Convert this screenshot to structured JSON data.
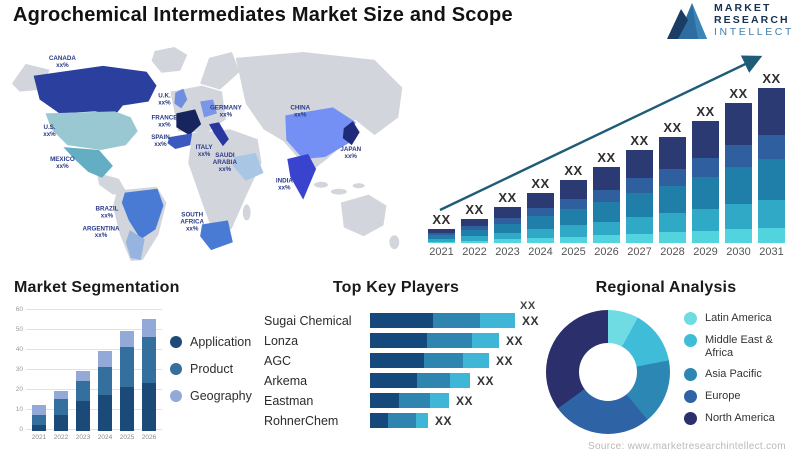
{
  "header": {
    "title": "Agrochemical Intermediates Market Size and Scope",
    "logo": {
      "line1": "MARKET",
      "line2": "RESEARCH",
      "line3": "INTELLECT",
      "icon": "mountain-m-logo",
      "color_dark": "#16314f",
      "color_light": "#2e6da0"
    }
  },
  "sections": {
    "segmentation_title": "Market Segmentation",
    "players_title": "Top Key Players",
    "regional_title": "Regional Analysis"
  },
  "source_note": "Source: www.marketresearchintellect.com",
  "chart_data": [
    {
      "id": "market_size",
      "type": "bar",
      "title": "Market size forecast by year (stacked)",
      "categories": [
        "2021",
        "2022",
        "2023",
        "2024",
        "2025",
        "2026",
        "2027",
        "2028",
        "2029",
        "2030",
        "2031"
      ],
      "bar_label": "XX",
      "totals_relative": [
        14,
        24,
        36,
        50,
        63,
        76,
        93,
        106,
        122,
        140,
        155
      ],
      "stack_fractions": [
        0.1,
        0.18,
        0.26,
        0.16,
        0.3
      ],
      "stack_colors": [
        "#52d4de",
        "#2fa9c6",
        "#1f7fa8",
        "#2f5f9e",
        "#2b3a72"
      ],
      "trend_arrow": true,
      "arrow_color": "#1e5c78",
      "legend_position": "none",
      "grid": false
    },
    {
      "id": "segmentation",
      "type": "bar",
      "stacked": true,
      "title": "Market Segmentation",
      "categories": [
        "2021",
        "2022",
        "2023",
        "2024",
        "2025",
        "2026"
      ],
      "series": [
        {
          "name": "Application",
          "color": "#1b4a78",
          "values": [
            3,
            8,
            15,
            18,
            22,
            24
          ]
        },
        {
          "name": "Product",
          "color": "#356f9e",
          "values": [
            5,
            8,
            10,
            14,
            20,
            23
          ]
        },
        {
          "name": "Geography",
          "color": "#93a9d8",
          "values": [
            5,
            4,
            5,
            8,
            8,
            9
          ]
        }
      ],
      "ylim": [
        0,
        60
      ],
      "yticks": [
        0,
        10,
        20,
        30,
        40,
        50,
        60
      ],
      "grid": true,
      "legend_position": "right"
    },
    {
      "id": "players",
      "type": "bar",
      "orientation": "horizontal",
      "stacked": true,
      "title": "Top Key Players",
      "bar_label": "XX",
      "stack_colors": [
        "#15497c",
        "#2e86b0",
        "#3fb6d6"
      ],
      "players": [
        {
          "name": "Sugai Chemical",
          "segments": [
            63,
            47,
            35
          ]
        },
        {
          "name": "Lonza",
          "segments": [
            57,
            45,
            27
          ]
        },
        {
          "name": "AGC",
          "segments": [
            54,
            39,
            26
          ]
        },
        {
          "name": "Arkema",
          "segments": [
            47,
            33,
            20
          ]
        },
        {
          "name": "Eastman",
          "segments": [
            29,
            31,
            19
          ]
        },
        {
          "name": "RohnerChem",
          "segments": [
            18,
            28,
            12
          ]
        }
      ]
    },
    {
      "id": "regional",
      "type": "pie",
      "donut": true,
      "title": "Regional Analysis",
      "label": "XX",
      "legend_position": "right",
      "slices": [
        {
          "name": "Latin America",
          "pct": 8,
          "color": "#6fdce3"
        },
        {
          "name": "Middle East & Africa",
          "pct": 14,
          "color": "#3fbcd8"
        },
        {
          "name": "Asia Pacific",
          "pct": 17,
          "color": "#2d87b5"
        },
        {
          "name": "Europe",
          "pct": 26,
          "color": "#2e63a6"
        },
        {
          "name": "North America",
          "pct": 35,
          "color": "#2b2f6b"
        }
      ]
    },
    {
      "id": "world_map",
      "type": "map",
      "title": "Regional market share map",
      "base_color": "#d2d5db",
      "regions": [
        {
          "id": "canada",
          "label": "CANADA",
          "value": "xx%",
          "color": "#2b3f9e",
          "lx": 57,
          "ly": 14,
          "two_line": false
        },
        {
          "id": "usa",
          "label": "U.S.",
          "value": "xx%",
          "color": "#9ac8d2",
          "lx": 44,
          "ly": 84,
          "two_line": false
        },
        {
          "id": "mexico",
          "label": "MEXICO",
          "value": "xx%",
          "color": "#64aec4",
          "lx": 57,
          "ly": 116,
          "two_line": false
        },
        {
          "id": "brazil",
          "label": "BRAZIL",
          "value": "xx%",
          "color": "#4a7bd4",
          "lx": 102,
          "ly": 166,
          "two_line": false
        },
        {
          "id": "argentina",
          "label": "ARGENTINA",
          "value": "xx%",
          "color": "#97b3e0",
          "lx": 96,
          "ly": 186,
          "two_line": false
        },
        {
          "id": "uk",
          "label": "U.K.",
          "value": "xx%",
          "color": "#6e8fe0",
          "lx": 160,
          "ly": 52,
          "two_line": false
        },
        {
          "id": "france",
          "label": "FRANCE",
          "value": "xx%",
          "color": "#16255e",
          "lx": 160,
          "ly": 74,
          "two_line": false
        },
        {
          "id": "spain",
          "label": "SPAIN",
          "value": "xx%",
          "color": "#3c59c0",
          "lx": 156,
          "ly": 94,
          "two_line": false
        },
        {
          "id": "germany",
          "label": "GERMANY",
          "value": "xx%",
          "color": "#7b96e8",
          "lx": 222,
          "ly": 64,
          "two_line": false
        },
        {
          "id": "italy",
          "label": "ITALY",
          "value": "xx%",
          "color": "#2736a0",
          "lx": 200,
          "ly": 104,
          "two_line": false
        },
        {
          "id": "saudi-arabia",
          "label": "SAUDI ARABIA",
          "value": "xx%",
          "color": "#a9c6e4",
          "lx": 221,
          "ly": 112,
          "two_line": true
        },
        {
          "id": "south-africa",
          "label": "SOUTH AFRICA",
          "value": "xx%",
          "color": "#4a7bd4",
          "lx": 188,
          "ly": 172,
          "two_line": true
        },
        {
          "id": "china",
          "label": "CHINA",
          "value": "xx%",
          "color": "#7490f5",
          "lx": 297,
          "ly": 64,
          "two_line": false
        },
        {
          "id": "india",
          "label": "INDIA",
          "value": "xx%",
          "color": "#3a43cd",
          "lx": 281,
          "ly": 138,
          "two_line": false
        },
        {
          "id": "japan",
          "label": "JAPAN",
          "value": "xx%",
          "color": "#1f2a78",
          "lx": 348,
          "ly": 106,
          "two_line": false
        }
      ]
    }
  ]
}
